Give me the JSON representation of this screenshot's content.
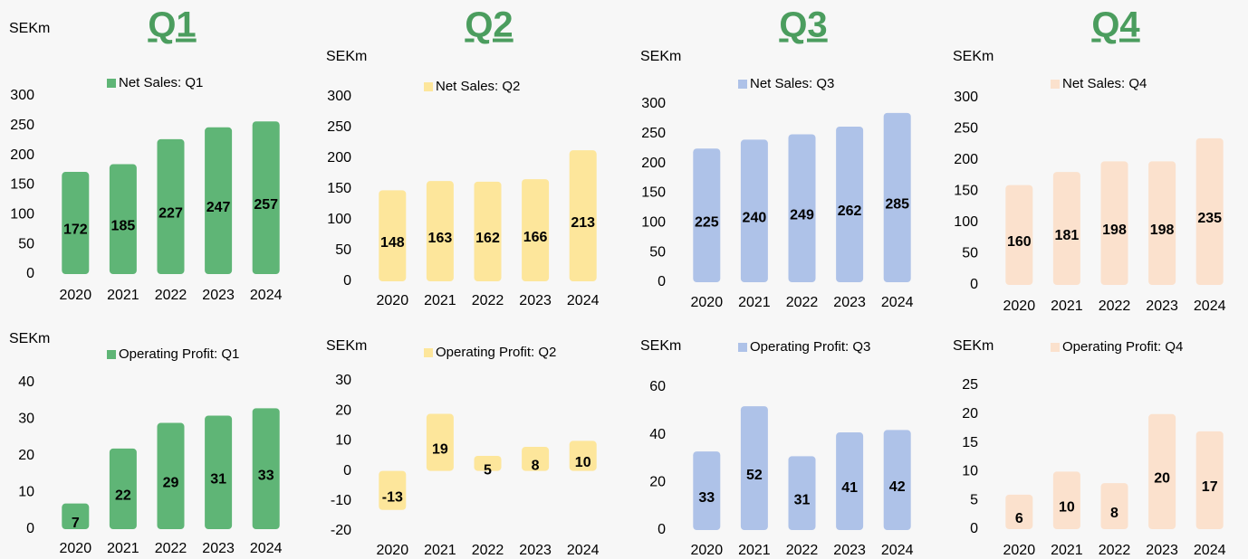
{
  "quarters": [
    "Q1",
    "Q2",
    "Q3",
    "Q4"
  ],
  "chart_data": [
    {
      "type": "bar",
      "unit": "SEKm",
      "series_name": "Net Sales: Q1",
      "color": "#5fb576",
      "categories": [
        "2020",
        "2021",
        "2022",
        "2023",
        "2024"
      ],
      "values": [
        172,
        185,
        227,
        247,
        257
      ],
      "ylim": [
        0,
        300
      ],
      "yticks": [
        0,
        50,
        100,
        150,
        200,
        250,
        300
      ]
    },
    {
      "type": "bar",
      "unit": "SEKm",
      "series_name": "Net Sales: Q2",
      "color": "#fde69b",
      "categories": [
        "2020",
        "2021",
        "2022",
        "2023",
        "2024"
      ],
      "values": [
        148,
        163,
        162,
        166,
        213
      ],
      "ylim": [
        0,
        300
      ],
      "yticks": [
        0,
        50,
        100,
        150,
        200,
        250,
        300
      ]
    },
    {
      "type": "bar",
      "unit": "SEKm",
      "series_name": "Net Sales: Q3",
      "color": "#aec2e8",
      "categories": [
        "2020",
        "2021",
        "2022",
        "2023",
        "2024"
      ],
      "values": [
        225,
        240,
        249,
        262,
        285
      ],
      "ylim": [
        0,
        300
      ],
      "yticks": [
        0,
        50,
        100,
        150,
        200,
        250,
        300
      ]
    },
    {
      "type": "bar",
      "unit": "SEKm",
      "series_name": "Net Sales: Q4",
      "color": "#fbe1cd",
      "categories": [
        "2020",
        "2021",
        "2022",
        "2023",
        "2024"
      ],
      "values": [
        160,
        181,
        198,
        198,
        235
      ],
      "ylim": [
        0,
        300
      ],
      "yticks": [
        0,
        50,
        100,
        150,
        200,
        250,
        300
      ]
    },
    {
      "type": "bar",
      "unit": "SEKm",
      "series_name": "Operating Profit: Q1",
      "color": "#5fb576",
      "categories": [
        "2020",
        "2021",
        "2022",
        "2023",
        "2024"
      ],
      "values": [
        7,
        22,
        29,
        31,
        33
      ],
      "ylim": [
        0,
        40
      ],
      "yticks": [
        0,
        10,
        20,
        30,
        40
      ]
    },
    {
      "type": "bar",
      "unit": "SEKm",
      "series_name": "Operating Profit: Q2",
      "color": "#fde69b",
      "categories": [
        "2020",
        "2021",
        "2022",
        "2023",
        "2024"
      ],
      "values": [
        -13,
        19,
        5,
        8,
        10
      ],
      "ylim": [
        -20,
        30
      ],
      "yticks": [
        -20,
        -10,
        0,
        10,
        20,
        30
      ]
    },
    {
      "type": "bar",
      "unit": "SEKm",
      "series_name": "Operating Profit: Q3",
      "color": "#aec2e8",
      "categories": [
        "2020",
        "2021",
        "2022",
        "2023",
        "2024"
      ],
      "values": [
        33,
        52,
        31,
        41,
        42
      ],
      "ylim": [
        0,
        60
      ],
      "yticks": [
        0,
        20,
        40,
        60
      ]
    },
    {
      "type": "bar",
      "unit": "SEKm",
      "series_name": "Operating Profit: Q4",
      "color": "#fbe1cd",
      "categories": [
        "2020",
        "2021",
        "2022",
        "2023",
        "2024"
      ],
      "values": [
        6,
        10,
        8,
        20,
        17
      ],
      "ylim": [
        0,
        25
      ],
      "yticks": [
        0,
        5,
        10,
        15,
        20,
        25
      ]
    }
  ]
}
